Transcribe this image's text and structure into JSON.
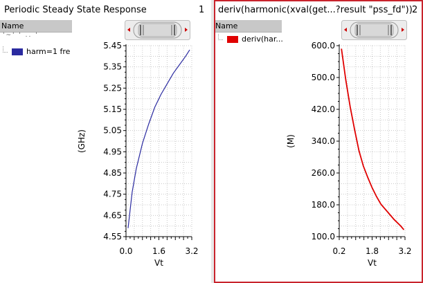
{
  "panes": [
    {
      "title": "Periodic Steady State Response",
      "number": "1",
      "legend_header": "Name",
      "legend_partial": "'~'  '  ..  '",
      "trace_label": "harm=1 fre",
      "trace_color": "#2a2aa0",
      "selected": false,
      "chart_data": {
        "type": "line",
        "xlabel": "Vt",
        "ylabel": "(GHz)",
        "xlim": [
          0.0,
          3.2
        ],
        "ylim": [
          4.55,
          5.45
        ],
        "xticks": [
          "0.0",
          "1.6",
          "3.2"
        ],
        "yticks": [
          "5.45",
          "5.35",
          "5.25",
          "5.15",
          "5.05",
          "4.95",
          "4.85",
          "4.75",
          "4.65",
          "4.55"
        ],
        "series": [
          {
            "name": "harm=1 fre",
            "x": [
              0.1,
              0.3,
              0.5,
              0.8,
              1.1,
              1.4,
              1.7,
              2.0,
              2.3,
              2.6,
              2.9,
              3.1
            ],
            "y": [
              4.59,
              4.76,
              4.87,
              4.99,
              5.08,
              5.16,
              5.22,
              5.27,
              5.32,
              5.36,
              5.4,
              5.43
            ]
          }
        ],
        "grid": true
      }
    },
    {
      "title": "deriv(harmonic(xval(get...?result \"pss_fd\"))",
      "number": "2",
      "legend_header": "Name",
      "trace_label": "deriv(har...",
      "trace_color": "#e00000",
      "selected": true,
      "chart_data": {
        "type": "line",
        "xlabel": "Vt",
        "ylabel": "(M)",
        "xlim": [
          0.2,
          3.2
        ],
        "ylim": [
          100,
          600
        ],
        "xticks": [
          "0.2",
          "1.8",
          "3.2"
        ],
        "yticks": [
          "600.0",
          "500.0",
          "420.0",
          "340.0",
          "260.0",
          "180.0",
          "100.0"
        ],
        "series": [
          {
            "name": "deriv(har...",
            "x": [
              0.3,
              0.5,
              0.7,
              0.9,
              1.1,
              1.3,
              1.5,
              1.7,
              1.9,
              2.1,
              2.4,
              2.7,
              3.0,
              3.15
            ],
            "y": [
              592,
              510,
              440,
              380,
              325,
              285,
              255,
              228,
              205,
              185,
              165,
              145,
              128,
              118
            ]
          }
        ],
        "grid": true
      }
    }
  ]
}
